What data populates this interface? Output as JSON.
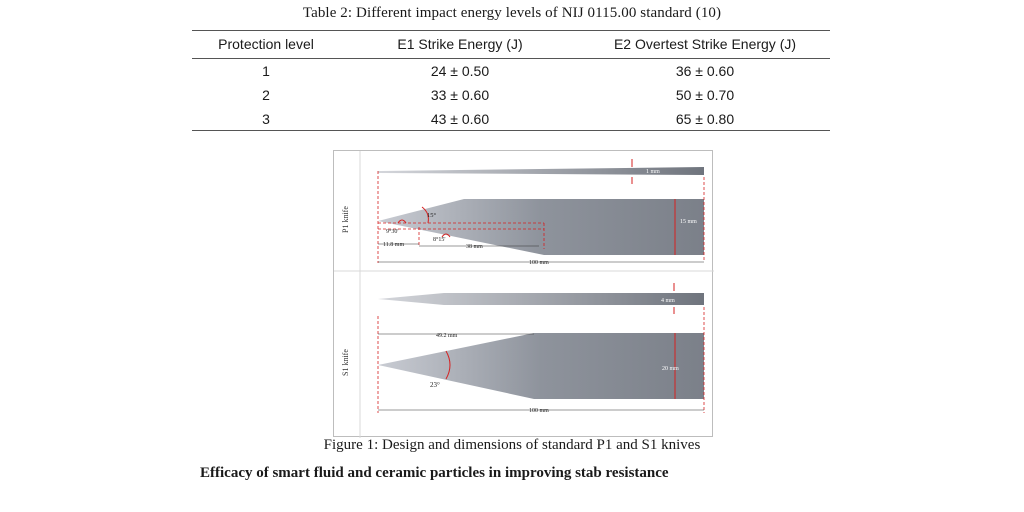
{
  "table": {
    "caption": "Table 2: Different impact energy levels of NIJ 0115.00 standard (10)",
    "headers": [
      "Protection level",
      "E1 Strike Energy (J)",
      "E2 Overtest Strike Energy (J)"
    ],
    "rows": [
      [
        "1",
        "24 ± 0.50",
        "36 ± 0.60"
      ],
      [
        "2",
        "33 ± 0.60",
        "50 ± 0.70"
      ],
      [
        "3",
        "43 ± 0.60",
        "65 ± 0.80"
      ]
    ]
  },
  "figure": {
    "p1": {
      "side_label": "P1 knife",
      "thickness": "1 mm",
      "width": "15 mm",
      "angle_tip": "9°30'",
      "angle_upper": "15°",
      "angle_lower": "8°15'",
      "tip_length": "11.8 mm",
      "bevel_length": "38 mm",
      "total_length": "100 mm"
    },
    "s1": {
      "side_label": "S1 knife",
      "thickness": "4 mm",
      "width": "20 mm",
      "bevel_length": "49.2 mm",
      "angle": "23°",
      "total_length": "100 mm"
    },
    "caption": "Figure 1: Design and dimensions of standard P1 and S1 knives"
  },
  "section_heading": "Efficacy of smart fluid and ceramic particles in improving stab resistance"
}
